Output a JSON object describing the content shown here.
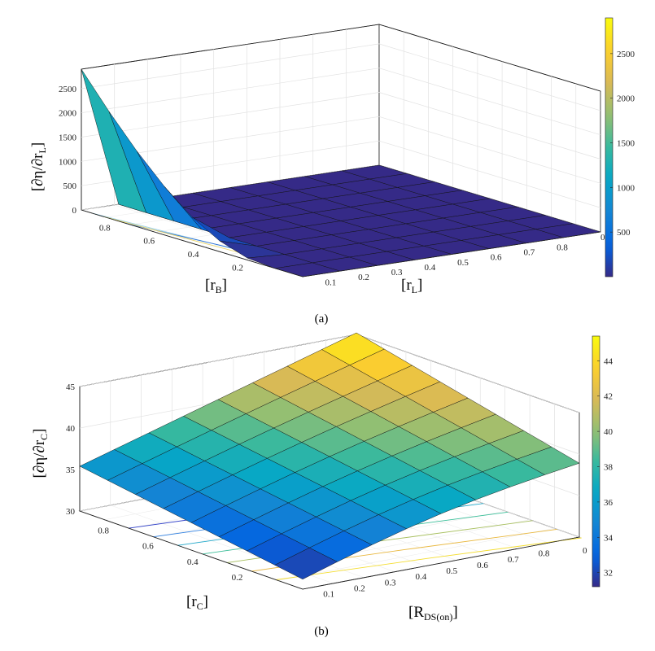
{
  "chart_data": [
    {
      "panel": "(a)",
      "type": "surface3d",
      "zlabel_main": "[∂η/∂r",
      "zlabel_sub": "L",
      "zlabel_close": "]",
      "xlabel_main": "[r",
      "xlabel_sub": "L",
      "xlabel_close": "]",
      "ylabel_main": "[r",
      "ylabel_sub": "B",
      "ylabel_close": "]",
      "x_ticks": [
        "0.1",
        "0.2",
        "0.3",
        "0.4",
        "0.5",
        "0.6",
        "0.7",
        "0.8"
      ],
      "y_ticks": [
        "0.8",
        "0.6",
        "0.4",
        "0.2"
      ],
      "z_ticks": [
        "0",
        "500",
        "1000",
        "1500",
        "2000",
        "2500"
      ],
      "colorbar_ticks": [
        "500",
        "1000",
        "1500",
        "2000",
        "2500"
      ],
      "colorbar_range": [
        0,
        2900
      ],
      "x": [
        0.1,
        0.2,
        0.3,
        0.4,
        0.5,
        0.6,
        0.7,
        0.8,
        0.9
      ],
      "y": [
        0.1,
        0.2,
        0.3,
        0.4,
        0.5,
        0.6,
        0.7,
        0.8,
        0.9
      ],
      "z_range": [
        0,
        2900
      ],
      "surface_edge_rL_0.1": [
        0,
        0,
        40,
        220,
        540,
        1000,
        1560,
        2200,
        2900
      ],
      "surface_elsewhere": 0,
      "clip_text": "0",
      "caption": "(a)"
    },
    {
      "panel": "(b)",
      "type": "surface3d",
      "zlabel_main": "[∂η/∂r",
      "zlabel_sub": "C",
      "zlabel_close": "]",
      "xlabel_main": "[R",
      "xlabel_sub": "DS(on)",
      "xlabel_close": "]",
      "ylabel_main": "[r",
      "ylabel_sub": "C",
      "ylabel_close": "]",
      "x_ticks": [
        "0.1",
        "0.2",
        "0.3",
        "0.4",
        "0.5",
        "0.6",
        "0.7",
        "0.8"
      ],
      "y_ticks": [
        "0.8",
        "0.6",
        "0.4",
        "0.2"
      ],
      "z_ticks": [
        "30",
        "35",
        "40",
        "45"
      ],
      "colorbar_ticks": [
        "32",
        "34",
        "36",
        "38",
        "40",
        "42",
        "44"
      ],
      "colorbar_range": [
        31.2,
        45.4
      ],
      "x": [
        0.1,
        0.2,
        0.3,
        0.4,
        0.5,
        0.6,
        0.7,
        0.8,
        0.9
      ],
      "y": [
        0.1,
        0.2,
        0.3,
        0.4,
        0.5,
        0.6,
        0.7,
        0.8,
        0.9
      ],
      "z_range": [
        30,
        45
      ],
      "z_min_corner": 31.2,
      "z_max_corner": 45.2,
      "clip_text": "0",
      "caption": "(b)"
    }
  ]
}
